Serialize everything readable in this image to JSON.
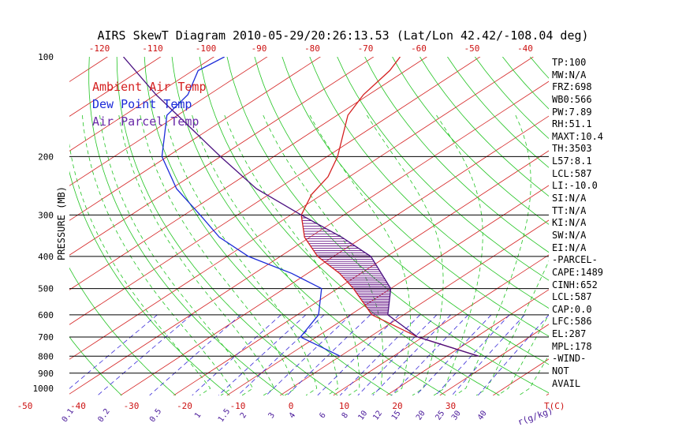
{
  "title": "AIRS SkewT Diagram 2010-05-29/20:26:13.53 (Lat/Lon 42.42/-108.04 deg)",
  "legend": [
    {
      "label": "Ambient Air Temp",
      "color": "#d42020"
    },
    {
      "label": "Dew Point Temp",
      "color": "#1c2bd8"
    },
    {
      "label": "Air Parcel Temp",
      "color": "#5a1a8c"
    }
  ],
  "colors": {
    "isotherm": "#d42020",
    "dry_adiabat": "#22c422",
    "moist_adiabat": "#22c422",
    "mixing_ratio": "#3a2bd8",
    "pressure_line": "#000000",
    "temperature": "#d42020",
    "dewpoint": "#1c2bd8",
    "parcel": "#4a1080",
    "cape_hatch": "#6a1a8a",
    "top_tick_labels": "#cc1111",
    "bottom_tick_labels": "#cc1111",
    "mixing_labels": "#4a1a9a"
  },
  "stats": [
    "TP:100",
    "MW:N/A",
    "FRZ:698",
    "WB0:566",
    "PW:7.89",
    "RH:51.1",
    "MAXT:10.4",
    "TH:3503",
    "L57:8.1",
    "LCL:587",
    "LI:-10.0",
    "SI:N/A",
    "TT:N/A",
    "KI:N/A",
    "SW:N/A",
    "EI:N/A",
    "-PARCEL-",
    "CAPE:1489",
    "CINH:652",
    "LCL:587",
    "CAP:0.0",
    "LFC:586",
    "EL:287",
    "MPL:178",
    "-WIND-",
    "NOT",
    "AVAIL"
  ],
  "chart_data": {
    "type": "line",
    "skew_t": true,
    "title": "AIRS SkewT Diagram 2010-05-29/20:26:13.53 (Lat/Lon 42.42/-108.04 deg)",
    "ylabel": "PRESSURE (MB)",
    "y_scale": "log",
    "ylim": [
      1000,
      100
    ],
    "pressure_ticks": [
      100,
      200,
      300,
      400,
      500,
      600,
      700,
      800,
      900,
      1000
    ],
    "pressure_lines_drawn": [
      200,
      300,
      400,
      500,
      600,
      700,
      800,
      900
    ],
    "bottom_temperature_ticks": [
      -50,
      -40,
      -30,
      -20,
      -10,
      0,
      10,
      20,
      30
    ],
    "bottom_temperature_unit": "T(C)",
    "top_temperature_ticks": [
      -120,
      -110,
      -100,
      -90,
      -80,
      -70,
      -60,
      -50,
      -40
    ],
    "mixing_ratio_labels": [
      "0.1",
      "0.2",
      "0.5",
      "1",
      "1.5",
      "2",
      "3",
      "4",
      "6",
      "8",
      "10",
      "12",
      "15",
      "20",
      "25",
      "30",
      "40"
    ],
    "mixing_ratio_unit": "r(g/kg)",
    "series": [
      {
        "name": "Ambient Air Temp",
        "role": "temperature",
        "points": [
          {
            "p": 800,
            "t": 26
          },
          {
            "p": 700,
            "t": 9
          },
          {
            "p": 600,
            "t": -6
          },
          {
            "p": 500,
            "t": -17
          },
          {
            "p": 450,
            "t": -24
          },
          {
            "p": 400,
            "t": -33
          },
          {
            "p": 350,
            "t": -41
          },
          {
            "p": 300,
            "t": -48
          },
          {
            "p": 260,
            "t": -52
          },
          {
            "p": 230,
            "t": -54
          },
          {
            "p": 200,
            "t": -58
          },
          {
            "p": 150,
            "t": -68
          },
          {
            "p": 130,
            "t": -71
          },
          {
            "p": 110,
            "t": -73
          },
          {
            "p": 100,
            "t": -75
          }
        ]
      },
      {
        "name": "Dew Point Temp",
        "role": "dewpoint",
        "points": [
          {
            "p": 800,
            "t": 0
          },
          {
            "p": 700,
            "t": -13
          },
          {
            "p": 600,
            "t": -16
          },
          {
            "p": 500,
            "t": -23
          },
          {
            "p": 450,
            "t": -33
          },
          {
            "p": 400,
            "t": -46
          },
          {
            "p": 350,
            "t": -57
          },
          {
            "p": 300,
            "t": -67
          },
          {
            "p": 250,
            "t": -79
          },
          {
            "p": 200,
            "t": -91
          },
          {
            "p": 150,
            "t": -102
          },
          {
            "p": 130,
            "t": -104
          },
          {
            "p": 110,
            "t": -109
          },
          {
            "p": 100,
            "t": -108
          }
        ]
      },
      {
        "name": "Air Parcel Temp",
        "role": "parcel",
        "points": [
          {
            "p": 800,
            "t": 26
          },
          {
            "p": 700,
            "t": 9
          },
          {
            "p": 600,
            "t": -3
          },
          {
            "p": 500,
            "t": -10
          },
          {
            "p": 400,
            "t": -23
          },
          {
            "p": 350,
            "t": -34
          },
          {
            "p": 300,
            "t": -48
          },
          {
            "p": 250,
            "t": -64
          },
          {
            "p": 200,
            "t": -80
          },
          {
            "p": 150,
            "t": -100
          },
          {
            "p": 130,
            "t": -110
          },
          {
            "p": 100,
            "t": -127
          }
        ]
      }
    ],
    "cape_region": {
      "p_bottom": 600,
      "p_top": 300
    }
  }
}
